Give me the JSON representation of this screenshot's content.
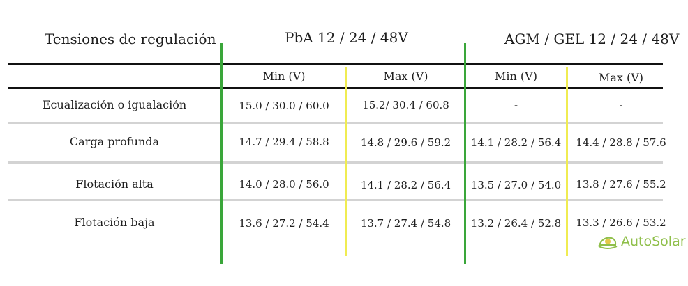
{
  "header": {
    "col_label": "Tensiones de regulación",
    "group1": "PbA 12 / 24 / 48V",
    "group2": "AGM / GEL 12 / 24 / 48V"
  },
  "subheader": [
    "Min (V)",
    "Max (V)",
    "Min (V)",
    "Max (V)"
  ],
  "rows": [
    {
      "label": "Ecualización o igualación",
      "values": [
        "15.0 / 30.0 / 60.0",
        "15.2/ 30.4 / 60.8",
        "-",
        "-"
      ]
    },
    {
      "label": "Carga profunda",
      "values": [
        "14.7 / 29.4 / 58.8",
        "14.8 / 29.6 / 59.2",
        "14.1 / 28.2 / 56.4",
        "14.4 / 28.8 / 57.6"
      ]
    },
    {
      "label": "Flotación alta",
      "values": [
        "14.0 / 28.0 / 56.0",
        "14.1 / 28.2 / 56.4",
        "13.5 / 27.0 / 54.0",
        "13.8 / 27.6 / 55.2"
      ]
    },
    {
      "label": "Flotación baja",
      "values": [
        "13.6 / 27.2 / 54.4",
        "13.7 / 27.4 / 54.8",
        "13.2 / 26.4 / 52.8",
        "13.3 / 26.6 / 53.2"
      ]
    }
  ],
  "logo": {
    "text": "AutoSolar"
  },
  "colors": {
    "green": "#3aa63a",
    "yellow": "#f0ec52",
    "logo": "#8fbf4a"
  }
}
